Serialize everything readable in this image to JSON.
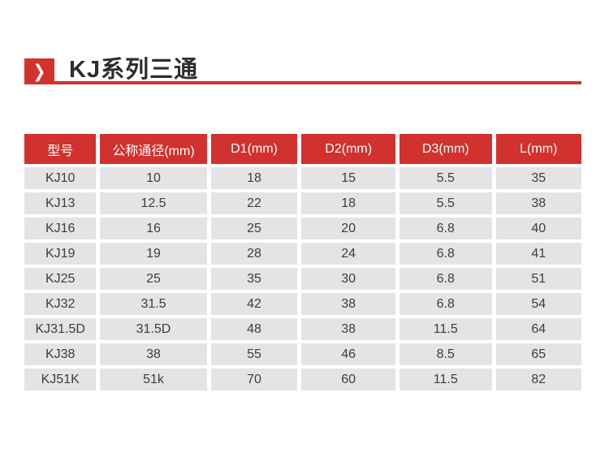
{
  "header": {
    "title": "KJ系列三通",
    "chevron_glyph": "❯"
  },
  "colors": {
    "accent_red": "#d2312d",
    "row_gray": "#e5e4e4",
    "title_dark": "#2d2d2d"
  },
  "table": {
    "columns": [
      "型号",
      "公称通径(mm)",
      "D1(mm)",
      "D2(mm)",
      "D3(mm)",
      "L(mm)"
    ],
    "rows": [
      [
        "KJ10",
        "10",
        "18",
        "15",
        "5.5",
        "35"
      ],
      [
        "KJ13",
        "12.5",
        "22",
        "18",
        "5.5",
        "38"
      ],
      [
        "KJ16",
        "16",
        "25",
        "20",
        "6.8",
        "40"
      ],
      [
        "KJ19",
        "19",
        "28",
        "24",
        "6.8",
        "41"
      ],
      [
        "KJ25",
        "25",
        "35",
        "30",
        "6.8",
        "51"
      ],
      [
        "KJ32",
        "31.5",
        "42",
        "38",
        "6.8",
        "54"
      ],
      [
        "KJ31.5D",
        "31.5D",
        "48",
        "38",
        "11.5",
        "64"
      ],
      [
        "KJ38",
        "38",
        "55",
        "46",
        "8.5",
        "65"
      ],
      [
        "KJ51K",
        "51k",
        "70",
        "60",
        "11.5",
        "82"
      ]
    ]
  }
}
